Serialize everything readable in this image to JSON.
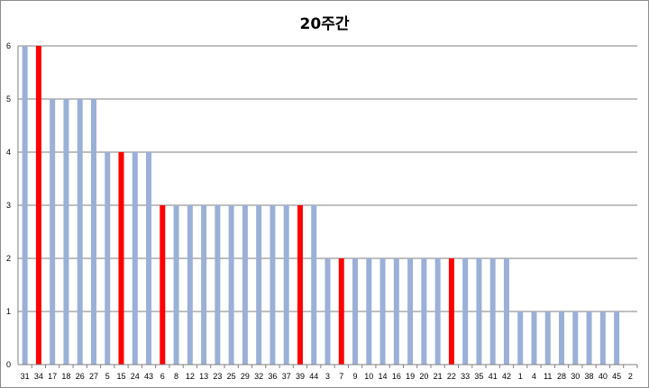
{
  "chart_data": {
    "type": "bar",
    "title": "20주간",
    "xlabel": "",
    "ylabel": "",
    "ylim": [
      0,
      6
    ],
    "yticks": [
      0,
      1,
      2,
      3,
      4,
      5,
      6
    ],
    "grid": true,
    "legend": "none",
    "categories": [
      "31",
      "34",
      "17",
      "18",
      "26",
      "27",
      "5",
      "15",
      "24",
      "43",
      "6",
      "8",
      "12",
      "13",
      "23",
      "25",
      "29",
      "32",
      "36",
      "37",
      "39",
      "44",
      "3",
      "7",
      "9",
      "10",
      "14",
      "16",
      "19",
      "20",
      "21",
      "22",
      "33",
      "35",
      "41",
      "42",
      "1",
      "4",
      "11",
      "28",
      "30",
      "38",
      "40",
      "45",
      "2"
    ],
    "values": [
      6,
      6,
      5,
      5,
      5,
      5,
      4,
      4,
      4,
      4,
      3,
      3,
      3,
      3,
      3,
      3,
      3,
      3,
      3,
      3,
      3,
      3,
      2,
      2,
      2,
      2,
      2,
      2,
      2,
      2,
      2,
      2,
      2,
      2,
      2,
      2,
      1,
      1,
      1,
      1,
      1,
      1,
      1,
      1,
      0
    ],
    "highlighted": [
      "34",
      "15",
      "6",
      "39",
      "7",
      "22"
    ],
    "colors": {
      "bar": "#9bb0d6",
      "highlight": "#ff0000",
      "grid": "#7f7f7f",
      "axis": "#7f7f7f"
    }
  }
}
